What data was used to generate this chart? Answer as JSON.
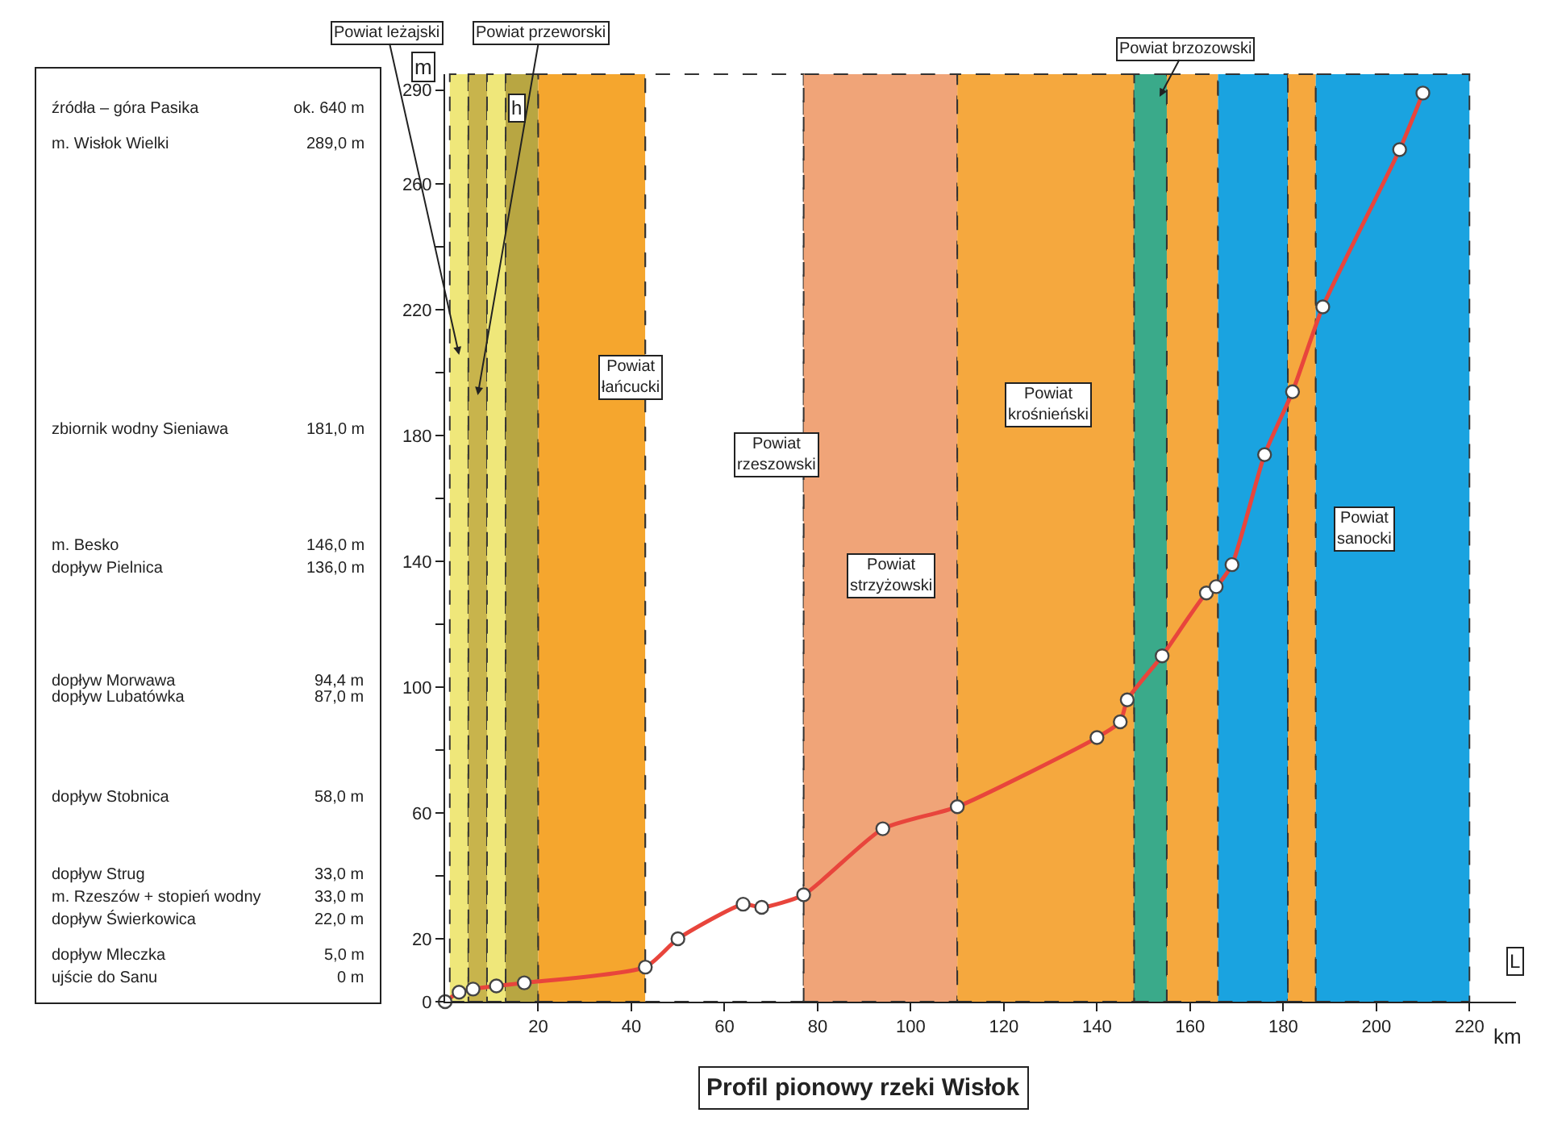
{
  "chart_data": {
    "type": "line",
    "title": "Profil pionowy rzeki Wisłok",
    "xlabel": "km",
    "ylabel": "m",
    "annotations": [
      "źródła – góra Pasika",
      "ok. 640 m",
      "m. Wisłok Wielki",
      "289,0 m",
      "zbiornik wodny Sieniawa",
      "181,0 m",
      "m. Besko",
      "146,0 m",
      "dopływ Pielnica",
      "136,0 m",
      "dopływ Morwawa",
      "94,4 m",
      "dopływ Lubatówka",
      "87,0 m",
      "dopływ Stobnica",
      "58,0 m",
      "dopływ Strug",
      "33,0 m",
      "m. Rzeszów + stopień wodny",
      "33,0 m",
      "dopływ Świerkowica",
      "22,0 m",
      "dopływ Mleczka",
      "5,0 m",
      "ujście do Sanu",
      "0 m",
      "h",
      "L"
    ],
    "x": [
      0,
      3,
      6,
      11,
      17,
      43,
      50,
      64,
      68,
      77,
      94,
      110,
      140,
      145,
      146.5,
      154,
      163.5,
      165.6,
      169,
      176,
      182,
      188.5,
      205,
      210
    ],
    "series": [
      {
        "color": "#e8453c",
        "values": [
          0,
          3,
          4,
          5,
          6,
          11,
          20,
          31,
          30,
          34,
          55,
          62,
          84,
          89,
          96,
          110,
          130,
          132,
          139,
          174,
          194,
          221,
          271,
          289
        ]
      }
    ],
    "marker": "circle",
    "line_style": "solid",
    "grid": false,
    "xlim": [
      0,
      230
    ],
    "ylim": [
      0,
      295
    ],
    "xticks": [
      20,
      40,
      60,
      80,
      100,
      120,
      140,
      160,
      180,
      200,
      220
    ],
    "yticks": [
      0,
      20,
      {
        "value": 40,
        "label": null
      },
      60,
      {
        "value": 80,
        "label": null
      },
      100,
      {
        "value": 120,
        "label": null
      },
      140,
      {
        "value": 160,
        "label": null
      },
      180,
      {
        "value": 200,
        "label": null
      },
      220,
      {
        "value": 240,
        "label": null
      },
      260,
      290
    ],
    "bands": [
      {
        "axis": "x",
        "from": 1,
        "to": 5,
        "color": "#efe77a",
        "label": "Powiat leżajski"
      },
      {
        "axis": "x",
        "from": 5,
        "to": 9,
        "color": "#c8b44c",
        "label": "Powiat przeworski"
      },
      {
        "axis": "x",
        "from": 9,
        "to": 13,
        "color": "#efe77a"
      },
      {
        "axis": "x",
        "from": 13,
        "to": 20,
        "color": "#b8a642"
      },
      {
        "axis": "x",
        "from": 20,
        "to": 43,
        "color": "#f5a62e",
        "label": "Powiat łańcucki"
      },
      {
        "axis": "x",
        "from": 43,
        "to": 77,
        "color": "#ffffff",
        "label": "Powiat rzeszowski"
      },
      {
        "axis": "x",
        "from": 77,
        "to": 110,
        "color": "#f0a478",
        "label": "Powiat strzyżowski"
      },
      {
        "axis": "x",
        "from": 110,
        "to": 148,
        "color": "#f5a83e",
        "label": "Powiat krośnieński"
      },
      {
        "axis": "x",
        "from": 148,
        "to": 155,
        "color": "#3aaa8a",
        "label": "Powiat brzozowski"
      },
      {
        "axis": "x",
        "from": 155,
        "to": 166,
        "color": "#f5a83e"
      },
      {
        "axis": "x",
        "from": 166,
        "to": 181,
        "color": "#1aa3e0"
      },
      {
        "axis": "x",
        "from": 181,
        "to": 187,
        "color": "#f5a83e"
      },
      {
        "axis": "x",
        "from": 187,
        "to": 220,
        "color": "#1aa3e0",
        "label": "Powiat sanocki"
      }
    ]
  }
}
